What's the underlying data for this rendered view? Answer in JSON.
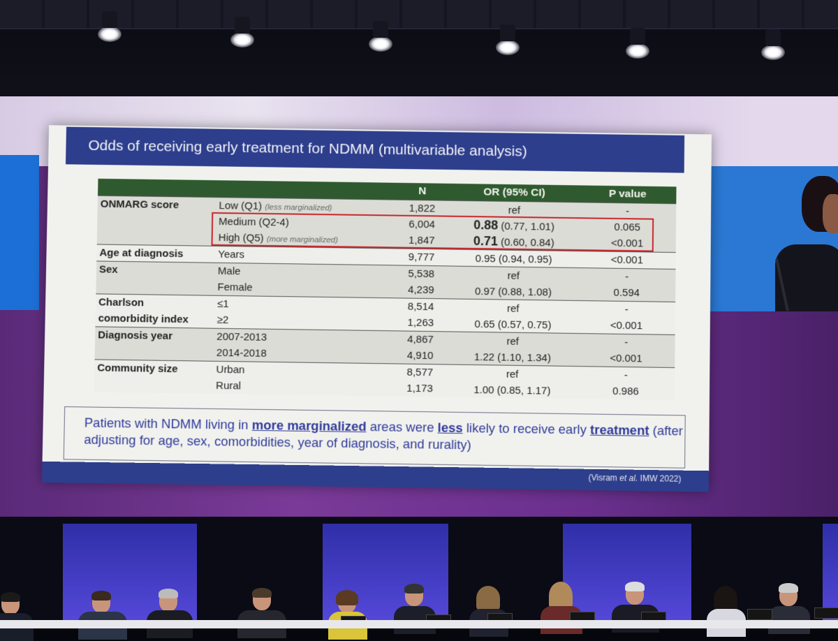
{
  "slide": {
    "title": "Odds of receiving early treatment for NDMM (multivariable analysis)",
    "table": {
      "headers": {
        "variable": "",
        "category": "",
        "n": "N",
        "or": "OR (95% CI)",
        "p": "P value"
      },
      "rows": [
        {
          "variable": "ONMARG score",
          "category": "Low (Q1)",
          "note": "(less marginalized)",
          "n": "1,822",
          "or_point": "",
          "or_text": "ref",
          "p": "-"
        },
        {
          "variable": "",
          "category": "Medium (Q2-4)",
          "note": "",
          "n": "6,004",
          "or_point": "0.88",
          "or_text": "(0.77, 1.01)",
          "p": "0.065"
        },
        {
          "variable": "",
          "category": "High (Q5)",
          "note": "(more marginalized)",
          "n": "1,847",
          "or_point": "0.71",
          "or_text": "(0.60, 0.84)",
          "p": "<0.001"
        },
        {
          "variable": "Age at diagnosis",
          "category": "Years",
          "note": "",
          "n": "9,777",
          "or_point": "",
          "or_text": "0.95 (0.94, 0.95)",
          "p": "<0.001"
        },
        {
          "variable": "Sex",
          "category": "Male",
          "note": "",
          "n": "5,538",
          "or_point": "",
          "or_text": "ref",
          "p": "-"
        },
        {
          "variable": "",
          "category": "Female",
          "note": "",
          "n": "4,239",
          "or_point": "",
          "or_text": "0.97 (0.88, 1.08)",
          "p": "0.594"
        },
        {
          "variable": "Charlson",
          "category": "≤1",
          "note": "",
          "n": "8,514",
          "or_point": "",
          "or_text": "ref",
          "p": "-"
        },
        {
          "variable": "comorbidity index",
          "category": "≥2",
          "note": "",
          "n": "1,263",
          "or_point": "",
          "or_text": "0.65 (0.57, 0.75)",
          "p": "<0.001"
        },
        {
          "variable": "Diagnosis year",
          "category": "2007-2013",
          "note": "",
          "n": "4,867",
          "or_point": "",
          "or_text": "ref",
          "p": "-"
        },
        {
          "variable": "",
          "category": "2014-2018",
          "note": "",
          "n": "4,910",
          "or_point": "",
          "or_text": "1.22 (1.10, 1.34)",
          "p": "<0.001"
        },
        {
          "variable": "Community size",
          "category": "Urban",
          "note": "",
          "n": "8,577",
          "or_point": "",
          "or_text": "ref",
          "p": "-"
        },
        {
          "variable": "",
          "category": "Rural",
          "note": "",
          "n": "1,173",
          "or_point": "",
          "or_text": "1.00 (0.85, 1.17)",
          "p": "0.986"
        }
      ]
    },
    "conclusion": {
      "part1": "Patients with NDMM living in ",
      "emph1": "more marginalized",
      "part2": " areas were ",
      "emph2": "less",
      "part3": " likely to receive early ",
      "emph3": "treatment",
      "part4": " (after adjusting for age, sex, comorbidities, year of diagnosis, and rurality)"
    },
    "citation": {
      "prefix": "(Visram ",
      "italic": "et al.",
      "suffix": " IMW 2022)"
    }
  },
  "colors": {
    "title_bar": "#2d3e8c",
    "table_header": "#2f5a2f",
    "highlight_box": "#c8252c",
    "conclusion_text": "#2f3a9a"
  }
}
